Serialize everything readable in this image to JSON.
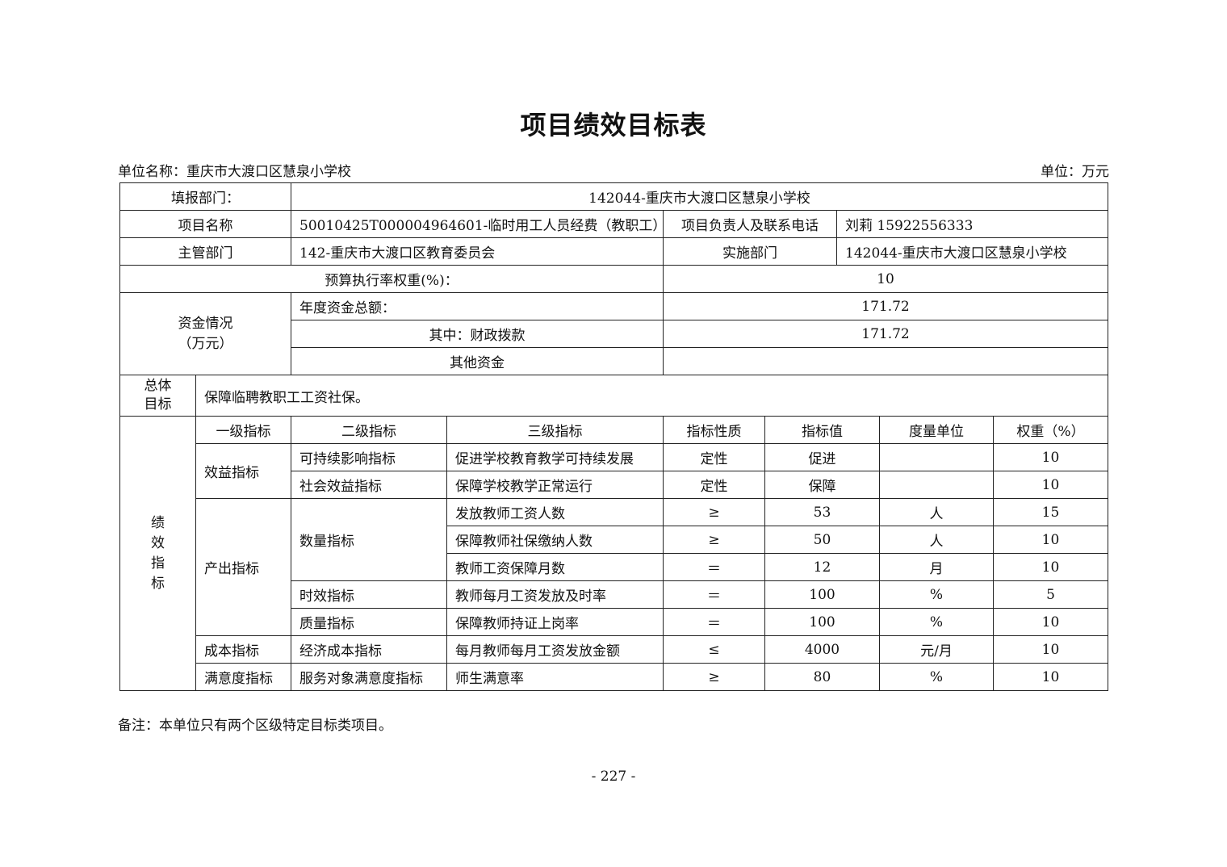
{
  "title": "项目绩效目标表",
  "unit_name": "单位名称：重庆市大渡口区慧泉小学校",
  "unit": "单位：万元",
  "info": {
    "fill_dept_label": "填报部门：",
    "fill_dept": "142044-重庆市大渡口区慧泉小学校",
    "project_name_label": "项目名称",
    "project_name": "50010425T000004964601-临时用工人员经费（教职工）",
    "contact_label": "项目负责人及联系电话",
    "contact": "刘莉 15922556333",
    "supervisor_label": "主管部门",
    "supervisor": "142-重庆市大渡口区教育委员会",
    "impl_label": "实施部门",
    "impl": "142044-重庆市大渡口区慧泉小学校",
    "budget_weight_label": "预算执行率权重(%)：",
    "budget_weight": "10",
    "funds_label_1": "资金情况",
    "funds_label_2": "（万元）",
    "annual_total_label": "年度资金总额：",
    "annual_total": "171.72",
    "fiscal_label": "其中：财政拨款",
    "fiscal": "171.72",
    "other_label": "其他资金",
    "other": "",
    "goal_label_1": "总体",
    "goal_label_2": "目标",
    "goal": "保障临聘教职工工资社保。"
  },
  "perf": {
    "side_label": [
      "绩",
      "效",
      "指",
      "标"
    ],
    "headers": [
      "一级指标",
      "二级指标",
      "三级指标",
      "指标性质",
      "指标值",
      "度量单位",
      "权重（%）"
    ],
    "rows": [
      {
        "l1": "效益指标",
        "l2": "可持续影响指标",
        "l3": "促进学校教育教学可持续发展",
        "nature": "定性",
        "value": "促进",
        "unit": "",
        "weight": "10"
      },
      {
        "l2": "社会效益指标",
        "l3": "保障学校教学正常运行",
        "nature": "定性",
        "value": "保障",
        "unit": "",
        "weight": "10"
      },
      {
        "l1": "产出指标",
        "l2": "数量指标",
        "l3": "发放教师工资人数",
        "nature": "≥",
        "value": "53",
        "unit": "人",
        "weight": "15"
      },
      {
        "l3": "保障教师社保缴纳人数",
        "nature": "≥",
        "value": "50",
        "unit": "人",
        "weight": "10"
      },
      {
        "l3": "教师工资保障月数",
        "nature": "＝",
        "value": "12",
        "unit": "月",
        "weight": "10"
      },
      {
        "l2": "时效指标",
        "l3": "教师每月工资发放及时率",
        "nature": "＝",
        "value": "100",
        "unit": "%",
        "weight": "5"
      },
      {
        "l2": "质量指标",
        "l3": "保障教师持证上岗率",
        "nature": "＝",
        "value": "100",
        "unit": "%",
        "weight": "10"
      },
      {
        "l1": "成本指标",
        "l2": "经济成本指标",
        "l3": "每月教师每月工资发放金额",
        "nature": "≤",
        "value": "4000",
        "unit": "元/月",
        "weight": "10"
      },
      {
        "l1": "满意度指标",
        "l2": "服务对象满意度指标",
        "l3": "师生满意率",
        "nature": "≥",
        "value": "80",
        "unit": "%",
        "weight": "10"
      }
    ]
  },
  "note": "备注：本单位只有两个区级特定目标类项目。",
  "page_number": "- 227 -"
}
